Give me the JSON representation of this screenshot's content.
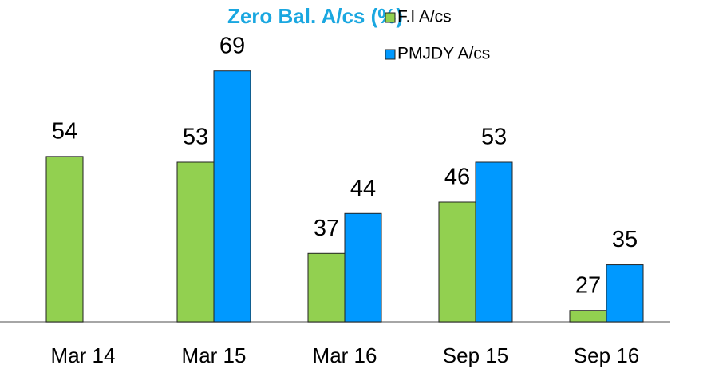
{
  "chart_data": {
    "type": "bar",
    "title": "Zero Bal. A/cs (%)",
    "categories": [
      "Mar 14",
      "Mar 15",
      "Mar 16",
      "Sep 15",
      "Sep 16"
    ],
    "series": [
      {
        "name": "F.I A/cs",
        "color": "#92d050",
        "values": [
          54,
          53,
          37,
          46,
          27
        ]
      },
      {
        "name": "PMJDY A/cs",
        "color": "#0099ff",
        "values": [
          null,
          69,
          44,
          53,
          35
        ]
      }
    ],
    "ylim": [
      25,
      81
    ],
    "legend": "top-right"
  }
}
